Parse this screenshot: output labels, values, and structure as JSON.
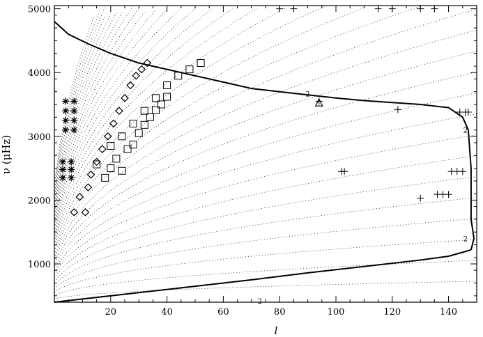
{
  "chart_data": {
    "type": "scatter",
    "title": "",
    "xlabel": "l",
    "ylabel": "ν (μHz)",
    "xlim": [
      0,
      150
    ],
    "ylim": [
      400,
      5050
    ],
    "x_ticks": [
      20,
      40,
      60,
      80,
      100,
      120,
      140
    ],
    "y_ticks": [
      1000,
      2000,
      3000,
      4000,
      5000
    ],
    "tick_labels_x": [
      "20",
      "40",
      "60",
      "80",
      "100",
      "120",
      "140"
    ],
    "tick_labels_y": [
      "1000",
      "2000",
      "3000",
      "4000",
      "5000"
    ],
    "grid": false,
    "contour_labels": [
      "2",
      "2",
      "2",
      "2"
    ],
    "series": [
      {
        "marker": "dot",
        "description": "p-mode ridges",
        "ridges": [
          [
            0,
            0
          ],
          [
            1,
            1
          ],
          [
            2,
            2
          ],
          [
            3,
            3
          ],
          [
            4,
            4
          ],
          [
            5,
            5
          ],
          [
            6,
            6
          ],
          [
            7,
            7
          ],
          [
            8,
            8
          ],
          [
            9,
            9
          ],
          [
            10,
            10
          ],
          [
            11,
            11
          ],
          [
            12,
            12
          ],
          [
            13,
            13
          ],
          [
            14,
            14
          ],
          [
            15,
            15
          ],
          [
            16,
            16
          ],
          [
            17,
            17
          ],
          [
            18,
            18
          ],
          [
            19,
            19
          ],
          [
            20,
            20
          ],
          [
            21,
            21
          ],
          [
            22,
            22
          ],
          [
            23,
            23
          ],
          [
            24,
            24
          ],
          [
            25,
            25
          ],
          [
            26,
            26
          ],
          [
            27,
            27
          ],
          [
            28,
            28
          ],
          [
            29,
            29
          ],
          [
            30,
            30
          ],
          [
            31,
            31
          ],
          [
            32,
            32
          ],
          [
            33,
            33
          ],
          [
            34,
            34
          ]
        ]
      },
      {
        "marker": "square",
        "points": [
          [
            15,
            2560
          ],
          [
            18,
            2350
          ],
          [
            20,
            2500
          ],
          [
            22,
            2650
          ],
          [
            24,
            2460
          ],
          [
            26,
            2800
          ],
          [
            28,
            2870
          ],
          [
            30,
            3050
          ],
          [
            32,
            3180
          ],
          [
            34,
            3300
          ],
          [
            36,
            3410
          ],
          [
            38,
            3500
          ],
          [
            40,
            3620
          ],
          [
            20,
            2850
          ],
          [
            24,
            3000
          ],
          [
            28,
            3200
          ],
          [
            32,
            3400
          ],
          [
            36,
            3600
          ],
          [
            40,
            3800
          ],
          [
            44,
            3950
          ],
          [
            48,
            4050
          ],
          [
            52,
            4150
          ]
        ]
      },
      {
        "marker": "diamond",
        "points": [
          [
            7,
            1810
          ],
          [
            11,
            1810
          ],
          [
            9,
            2050
          ],
          [
            12,
            2200
          ],
          [
            13,
            2400
          ],
          [
            15,
            2600
          ],
          [
            17,
            2800
          ],
          [
            19,
            3000
          ],
          [
            21,
            3200
          ],
          [
            23,
            3400
          ],
          [
            25,
            3600
          ],
          [
            27,
            3800
          ],
          [
            29,
            3950
          ],
          [
            31,
            4050
          ],
          [
            33,
            4150
          ]
        ]
      },
      {
        "marker": "asterisk",
        "points": [
          [
            3,
            2350
          ],
          [
            6,
            2350
          ],
          [
            3,
            2480
          ],
          [
            6,
            2480
          ],
          [
            3,
            2600
          ],
          [
            6,
            2600
          ],
          [
            4,
            3100
          ],
          [
            7,
            3100
          ],
          [
            4,
            3250
          ],
          [
            7,
            3250
          ],
          [
            4,
            3400
          ],
          [
            7,
            3400
          ],
          [
            4,
            3550
          ],
          [
            7,
            3550
          ]
        ]
      },
      {
        "marker": "plus",
        "points": [
          [
            94,
            3550
          ],
          [
            102,
            2450
          ],
          [
            103,
            2450
          ],
          [
            122,
            3420
          ],
          [
            130,
            2030
          ],
          [
            136,
            2090
          ],
          [
            138,
            2090
          ],
          [
            140,
            2090
          ],
          [
            141,
            2450
          ],
          [
            143,
            2450
          ],
          [
            145,
            2450
          ],
          [
            144,
            3380
          ],
          [
            146,
            3380
          ],
          [
            147,
            3380
          ],
          [
            80,
            5000
          ],
          [
            85,
            5000
          ],
          [
            115,
            5000
          ],
          [
            120,
            5000
          ],
          [
            130,
            5000
          ],
          [
            135,
            5000
          ]
        ]
      },
      {
        "marker": "triangle",
        "points": [
          [
            94,
            3530
          ]
        ]
      }
    ],
    "contours": [
      {
        "name": "lower boundary",
        "points": [
          [
            0,
            400
          ],
          [
            10,
            450
          ],
          [
            30,
            550
          ],
          [
            50,
            650
          ],
          [
            70,
            750
          ],
          [
            90,
            860
          ],
          [
            110,
            960
          ],
          [
            130,
            1060
          ],
          [
            140,
            1120
          ],
          [
            148,
            1220
          ]
        ]
      },
      {
        "name": "upper boundary",
        "points": [
          [
            0,
            4800
          ],
          [
            5,
            4600
          ],
          [
            12,
            4450
          ],
          [
            20,
            4300
          ],
          [
            30,
            4150
          ],
          [
            40,
            4050
          ],
          [
            50,
            3950
          ],
          [
            60,
            3850
          ],
          [
            70,
            3750
          ],
          [
            80,
            3700
          ],
          [
            90,
            3650
          ],
          [
            100,
            3600
          ],
          [
            110,
            3560
          ],
          [
            120,
            3530
          ],
          [
            130,
            3500
          ],
          [
            140,
            3450
          ],
          [
            145,
            3300
          ],
          [
            147,
            3100
          ],
          [
            148,
            2500
          ],
          [
            148,
            1700
          ],
          [
            149,
            1400
          ],
          [
            148,
            1220
          ]
        ]
      }
    ]
  }
}
